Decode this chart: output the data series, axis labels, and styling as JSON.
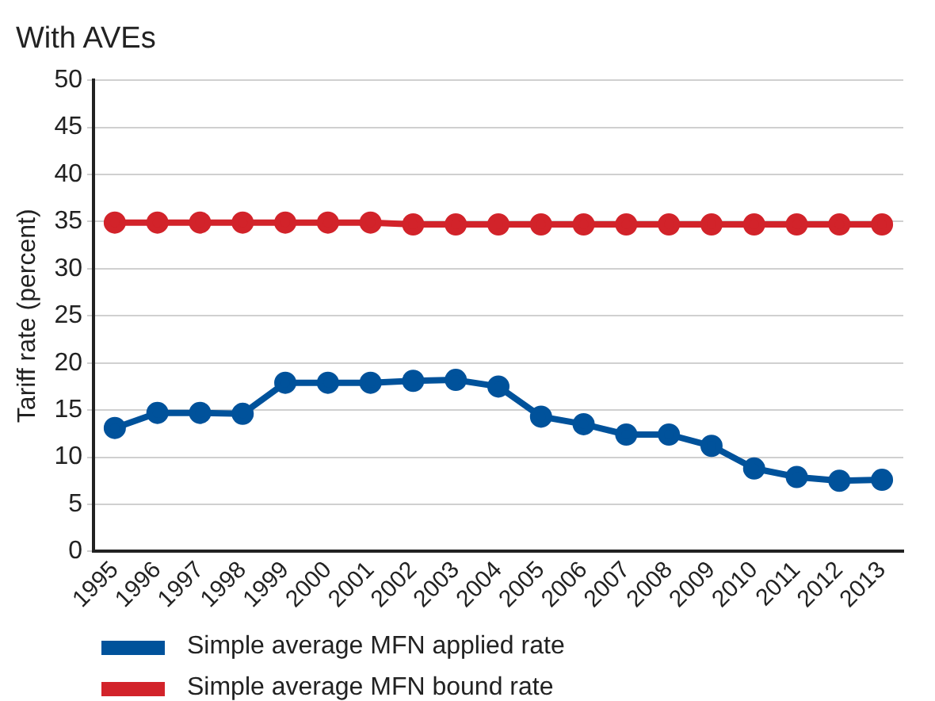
{
  "chart_data": {
    "type": "line",
    "title": "With AVEs",
    "ylabel": "Tariff rate (percent)",
    "categories": [
      "1995",
      "1996",
      "1997",
      "1998",
      "1999",
      "2000",
      "2001",
      "2002",
      "2003",
      "2004",
      "2005",
      "2006",
      "2007",
      "2008",
      "2009",
      "2010",
      "2011",
      "2012",
      "2013"
    ],
    "series": [
      {
        "name": "Simple average MFN applied rate",
        "color": "#00529b",
        "values": [
          13.1,
          14.7,
          14.7,
          14.6,
          17.9,
          17.9,
          17.9,
          18.1,
          18.2,
          17.5,
          14.3,
          13.5,
          12.4,
          12.4,
          11.2,
          8.8,
          7.9,
          7.5,
          7.6
        ]
      },
      {
        "name": "Simple average MFN bound rate",
        "color": "#d2232a",
        "values": [
          34.9,
          34.9,
          34.9,
          34.9,
          34.9,
          34.9,
          34.9,
          34.7,
          34.7,
          34.7,
          34.7,
          34.7,
          34.7,
          34.7,
          34.7,
          34.7,
          34.7,
          34.7,
          34.7
        ]
      }
    ],
    "ylim": [
      0,
      50
    ],
    "yticks": [
      0,
      5,
      10,
      15,
      20,
      25,
      30,
      35,
      40,
      45,
      50
    ],
    "grid": "y",
    "legend": "bottom left",
    "marker": "circle",
    "line_style": "solid"
  }
}
